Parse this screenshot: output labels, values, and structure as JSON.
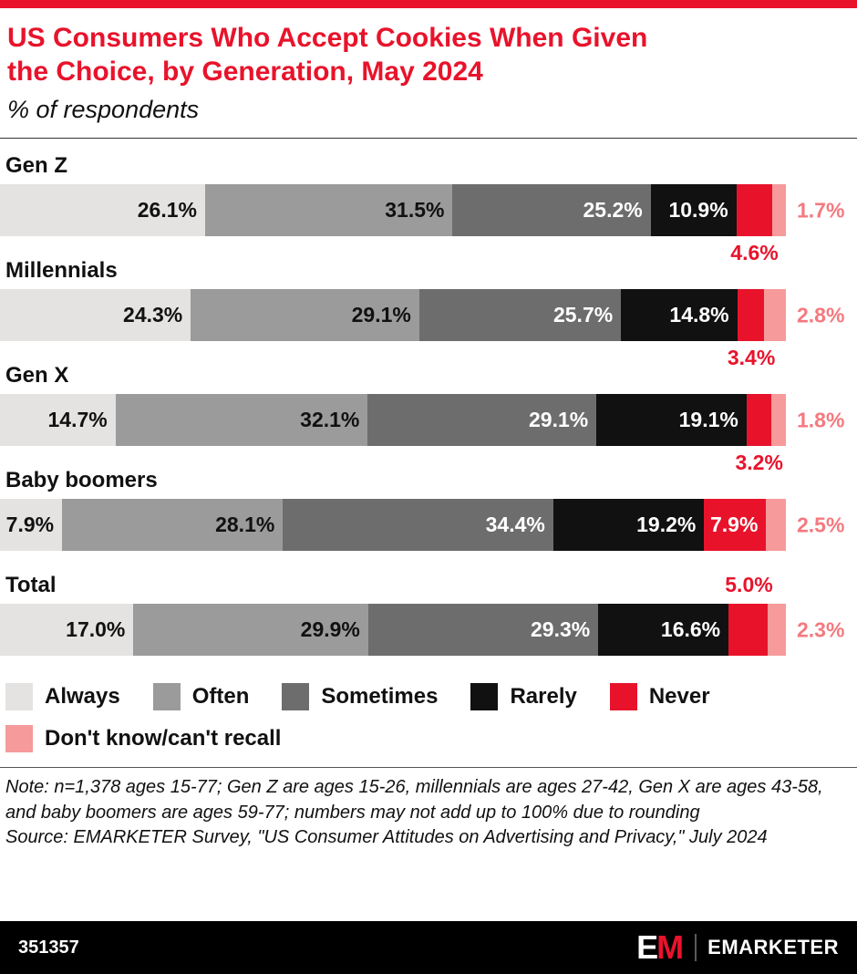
{
  "header": {
    "title": "US Consumers Who Accept Cookies When Given the Choice, by Generation, May 2024",
    "subtitle": "% of respondents"
  },
  "colors": {
    "accent_red": "#e8132b",
    "pink": "#f69a9b",
    "footer_black": "#000000"
  },
  "chart_data": {
    "type": "bar",
    "variant": "horizontal-stacked",
    "value_suffix": "%",
    "categories": [
      "Gen Z",
      "Millennials",
      "Gen X",
      "Baby boomers",
      "Total"
    ],
    "series": [
      {
        "name": "Always",
        "color": "#e4e3e2",
        "text_color": "#111111",
        "values": [
          26.1,
          24.3,
          14.7,
          7.9,
          17.0
        ]
      },
      {
        "name": "Often",
        "color": "#9c9b9b",
        "text_color": "#111111",
        "values": [
          31.5,
          29.1,
          32.1,
          28.1,
          29.9
        ]
      },
      {
        "name": "Sometimes",
        "color": "#6e6d6d",
        "text_color": "#ffffff",
        "values": [
          25.2,
          25.7,
          29.1,
          34.4,
          29.3
        ]
      },
      {
        "name": "Rarely",
        "color": "#111111",
        "text_color": "#ffffff",
        "values": [
          10.9,
          14.8,
          19.1,
          19.2,
          16.6
        ]
      },
      {
        "name": "Never",
        "color": "#e8132b",
        "text_color": "#ffffff",
        "values": [
          4.6,
          3.4,
          3.2,
          7.9,
          5.0
        ]
      },
      {
        "name": "Don't know/can't recall",
        "color": "#f69a9b",
        "text_color": "#f4797e",
        "values": [
          1.7,
          2.8,
          1.8,
          2.5,
          2.3
        ]
      }
    ],
    "legend_position": "bottom",
    "axis_labels_shown": false
  },
  "notes": {
    "note": "Note: n=1,378 ages 15-77; Gen Z are ages 15-26, millennials are ages 27-42, Gen X are ages 43-58, and baby boomers are ages 59-77; numbers may not add up to 100% due to rounding",
    "source": "Source: EMARKETER Survey, \"US Consumer Attitudes on Advertising and Privacy,\" July 2024"
  },
  "footer": {
    "chart_id": "351357",
    "logo_monogram_e": "E",
    "logo_monogram_m": "M",
    "logo_wordmark": "EMARKETER"
  }
}
